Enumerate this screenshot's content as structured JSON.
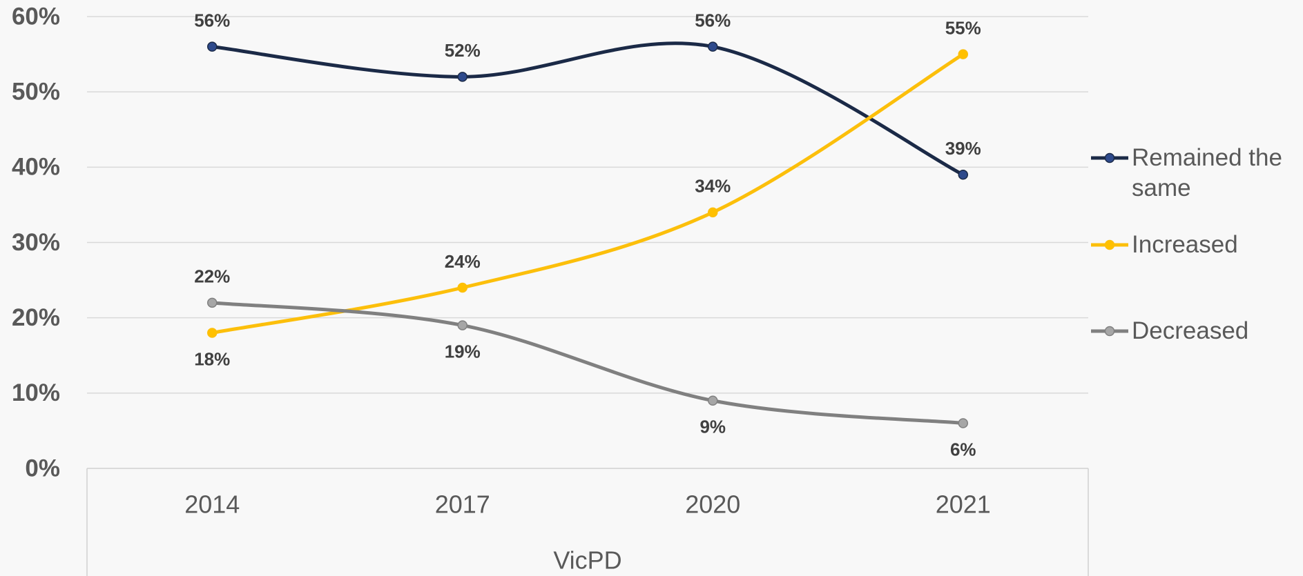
{
  "chart_data": {
    "type": "line",
    "x_label": "VicPD",
    "categories": [
      "2014",
      "2017",
      "2020",
      "2021"
    ],
    "series": [
      {
        "name": "Remained the same",
        "color": "#1b2a47",
        "marker_color": "#2e4a8c",
        "values": [
          56,
          52,
          56,
          39
        ],
        "value_labels": [
          "56%",
          "52%",
          "56%",
          "39%"
        ]
      },
      {
        "name": "Increased",
        "color": "#fcbf0b",
        "marker_color": "#ffc000",
        "values": [
          18,
          24,
          34,
          55
        ],
        "value_labels": [
          "18%",
          "24%",
          "34%",
          "55%"
        ]
      },
      {
        "name": "Decreased",
        "color": "#808080",
        "marker_color": "#a6a6a6",
        "values": [
          22,
          19,
          9,
          6
        ],
        "value_labels": [
          "22%",
          "19%",
          "9%",
          "6%"
        ]
      }
    ],
    "ylim": [
      0,
      60
    ],
    "yticks": [
      {
        "value": 0,
        "label": "0%"
      },
      {
        "value": 10,
        "label": "10%"
      },
      {
        "value": 20,
        "label": "20%"
      },
      {
        "value": 30,
        "label": "30%"
      },
      {
        "value": 40,
        "label": "40%"
      },
      {
        "value": 50,
        "label": "50%"
      },
      {
        "value": 60,
        "label": "60%"
      }
    ],
    "grid": true,
    "smooth": true,
    "legend": "right"
  }
}
